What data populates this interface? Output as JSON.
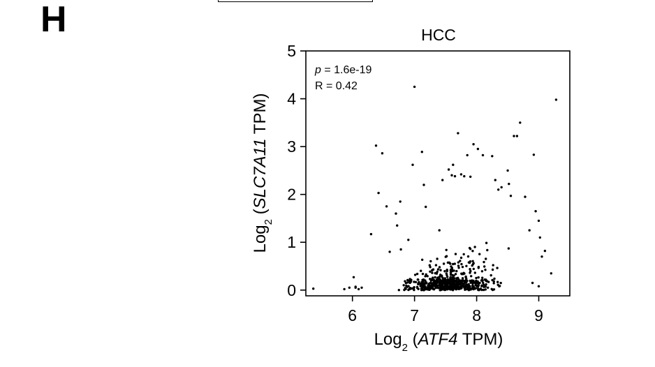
{
  "panel_label": "H",
  "chart_data": {
    "type": "scatter",
    "title": "HCC",
    "xlabel": {
      "prefix": "Log",
      "sub": "2",
      "open": " (",
      "gene": "ATF4",
      "suffix": " TPM)"
    },
    "ylabel": {
      "prefix": "Log",
      "sub": "2",
      "open": " (",
      "gene": "SLC7A11",
      "suffix": " TPM)"
    },
    "annotations": {
      "p_symbol": "p",
      "p_value": " = 1.6e-19",
      "r_text": "R = 0.42"
    },
    "xlim": [
      5.25,
      9.5
    ],
    "ylim": [
      -0.12,
      5.0
    ],
    "xticks": [
      6,
      7,
      8,
      9
    ],
    "xtick_labels": [
      "6",
      "7",
      "8",
      "9"
    ],
    "yticks": [
      0,
      1,
      2,
      3,
      4,
      5
    ],
    "ytick_labels": [
      "0",
      "1",
      "2",
      "3",
      "4",
      "5"
    ],
    "grid": false,
    "point_color": "#000000",
    "outliers": [
      [
        5.37,
        0.03
      ],
      [
        5.87,
        0.02
      ],
      [
        5.95,
        0.05
      ],
      [
        6.05,
        0.07
      ],
      [
        6.1,
        0.02
      ],
      [
        6.02,
        0.27
      ],
      [
        6.05,
        0.05
      ],
      [
        6.15,
        0.05
      ],
      [
        6.3,
        1.17
      ],
      [
        6.38,
        3.02
      ],
      [
        6.42,
        2.03
      ],
      [
        6.48,
        2.86
      ],
      [
        6.55,
        1.75
      ],
      [
        6.6,
        0.8
      ],
      [
        6.7,
        1.6
      ],
      [
        6.72,
        1.35
      ],
      [
        6.77,
        1.85
      ],
      [
        6.78,
        0.85
      ],
      [
        6.9,
        1.05
      ],
      [
        6.97,
        2.62
      ],
      [
        7.0,
        4.25
      ],
      [
        7.12,
        2.89
      ],
      [
        7.15,
        2.2
      ],
      [
        7.18,
        1.74
      ],
      [
        7.4,
        1.25
      ],
      [
        7.45,
        2.3
      ],
      [
        7.55,
        2.52
      ],
      [
        7.6,
        2.4
      ],
      [
        7.62,
        2.62
      ],
      [
        7.65,
        2.38
      ],
      [
        7.7,
        3.28
      ],
      [
        7.75,
        2.42
      ],
      [
        7.8,
        2.38
      ],
      [
        7.85,
        2.82
      ],
      [
        7.9,
        2.37
      ],
      [
        7.95,
        3.05
      ],
      [
        8.02,
        2.95
      ],
      [
        8.1,
        2.82
      ],
      [
        8.25,
        2.8
      ],
      [
        8.3,
        2.3
      ],
      [
        8.35,
        2.1
      ],
      [
        8.4,
        2.15
      ],
      [
        8.5,
        2.5
      ],
      [
        8.52,
        2.22
      ],
      [
        8.55,
        1.97
      ],
      [
        8.6,
        3.22
      ],
      [
        8.65,
        3.22
      ],
      [
        8.7,
        3.5
      ],
      [
        8.78,
        1.95
      ],
      [
        8.85,
        1.25
      ],
      [
        8.92,
        2.83
      ],
      [
        8.95,
        1.65
      ],
      [
        9.0,
        1.45
      ],
      [
        9.02,
        1.1
      ],
      [
        9.05,
        0.7
      ],
      [
        9.1,
        0.82
      ],
      [
        9.2,
        0.35
      ],
      [
        9.28,
        3.98
      ],
      [
        9.0,
        0.08
      ],
      [
        8.9,
        0.15
      ]
    ],
    "bulk_count": 620,
    "bulk_seed": 7,
    "bulk_x_range": [
      6.3,
      9.0
    ],
    "bulk_x_center": 7.6,
    "bulk_y_center": 0.15,
    "bulk_y_max": 2.0
  }
}
